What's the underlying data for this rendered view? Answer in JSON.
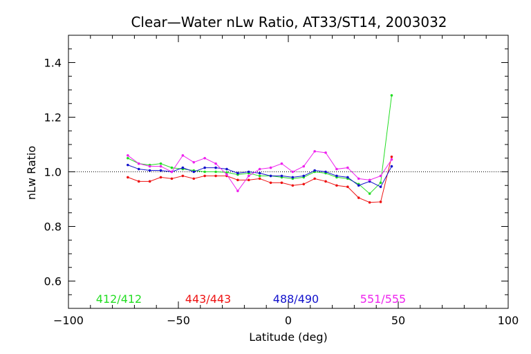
{
  "chart_data": {
    "type": "line",
    "title": "Clear—Water nLw Ratio, AT33/ST14, 2003032",
    "xlabel": "Latitude (deg)",
    "ylabel": "nLw Ratio",
    "xlim": [
      -100,
      100
    ],
    "ylim": [
      0.5,
      1.5
    ],
    "xticks": [
      -100,
      -50,
      0,
      50,
      100
    ],
    "xtick_labels": [
      "−100",
      "−50",
      "0",
      "50",
      "100"
    ],
    "yticks": [
      0.6,
      0.8,
      1.0,
      1.2,
      1.4
    ],
    "ytick_labels": [
      "0.6",
      "0.8",
      "1.0",
      "1.2",
      "1.4"
    ],
    "reference_line": {
      "y": 1.0,
      "style": "dotted"
    },
    "grid": false,
    "legend_placement": "bottom inside plot",
    "x": [
      -73,
      -68,
      -63,
      -58,
      -53,
      -48,
      -43,
      -38,
      -33,
      -28,
      -23,
      -18,
      -13,
      -8,
      -3,
      2,
      7,
      12,
      17,
      22,
      27,
      32,
      37,
      42,
      47
    ],
    "series": [
      {
        "name": "412/412",
        "color": "#22dd22",
        "values": [
          1.05,
          1.03,
          1.025,
          1.03,
          1.015,
          1.01,
          1.005,
          1.0,
          1.0,
          0.998,
          0.99,
          0.995,
          0.985,
          0.985,
          0.98,
          0.975,
          0.98,
          1.0,
          0.995,
          0.98,
          0.975,
          0.955,
          0.92,
          0.96,
          1.28
        ]
      },
      {
        "name": "443/443",
        "color": "#ee1111",
        "values": [
          0.98,
          0.965,
          0.965,
          0.98,
          0.975,
          0.985,
          0.975,
          0.985,
          0.985,
          0.985,
          0.97,
          0.97,
          0.975,
          0.96,
          0.96,
          0.95,
          0.955,
          0.975,
          0.965,
          0.95,
          0.945,
          0.905,
          0.888,
          0.89,
          1.055
        ]
      },
      {
        "name": "488/490",
        "color": "#1111cc",
        "values": [
          1.025,
          1.01,
          1.005,
          1.005,
          1.0,
          1.015,
          1.0,
          1.015,
          1.015,
          1.01,
          0.995,
          1.0,
          0.995,
          0.985,
          0.985,
          0.98,
          0.985,
          1.005,
          1.0,
          0.985,
          0.98,
          0.95,
          0.965,
          0.945,
          1.02
        ]
      },
      {
        "name": "551/555",
        "color": "#ee22ee",
        "values": [
          1.06,
          1.03,
          1.02,
          1.02,
          1.0,
          1.06,
          1.035,
          1.05,
          1.03,
          0.99,
          0.93,
          0.985,
          1.01,
          1.015,
          1.03,
          1.0,
          1.02,
          1.075,
          1.07,
          1.01,
          1.015,
          0.975,
          0.97,
          0.985,
          1.045
        ]
      }
    ]
  }
}
